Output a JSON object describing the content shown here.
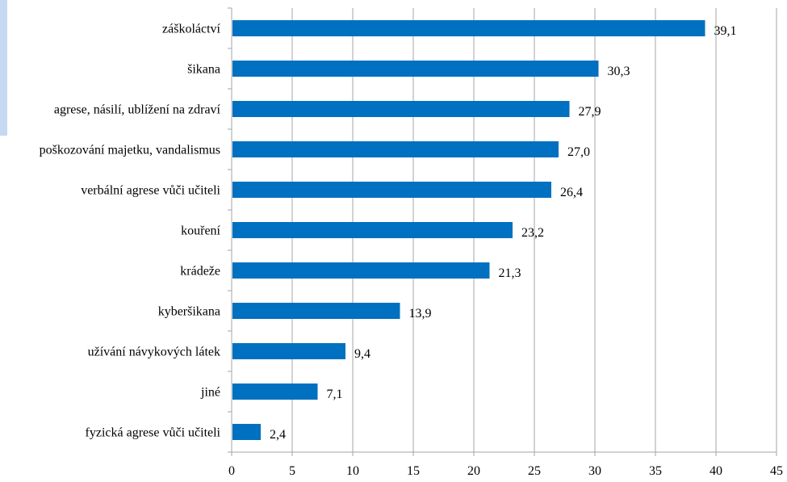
{
  "chart_data": {
    "type": "bar",
    "orientation": "horizontal",
    "categories": [
      "záškoláctví",
      "šikana",
      "agrese, násilí, ublížení na zdraví",
      "poškozování majetku, vandalismus",
      "verbální agrese vůči učiteli",
      "kouření",
      "krádeže",
      "kyberšikana",
      "užívání návykových látek",
      "jiné",
      "fyzická agrese vůči učiteli"
    ],
    "values": [
      39.1,
      30.3,
      27.9,
      27.0,
      26.4,
      23.2,
      21.3,
      13.9,
      9.4,
      7.1,
      2.4
    ],
    "value_labels": [
      "39,1",
      "30,3",
      "27,9",
      "27,0",
      "26,4",
      "23,2",
      "21,3",
      "13,9",
      "9,4",
      "7,1",
      "2,4"
    ],
    "xlim": [
      0,
      45
    ],
    "xticks": [
      0,
      5,
      10,
      15,
      20,
      25,
      30,
      35,
      40,
      45
    ],
    "title": "",
    "xlabel": "",
    "ylabel": "",
    "grid": true,
    "legend": "none",
    "colors": {
      "bar": "#0070c0",
      "grid": "#a6a6a6",
      "text": "#000000",
      "left_strip": "#c6d9f1"
    }
  }
}
